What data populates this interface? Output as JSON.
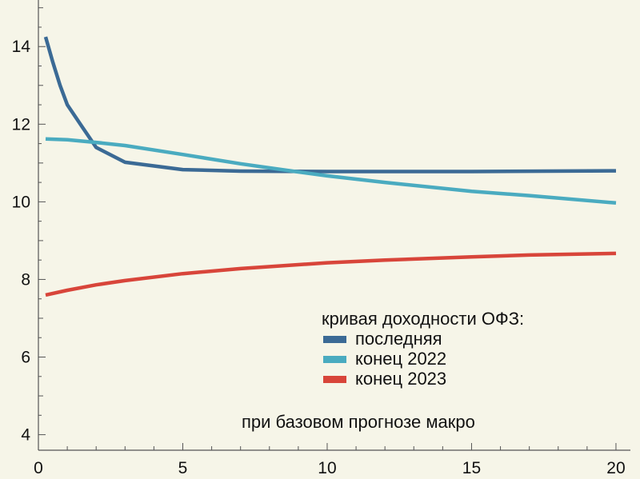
{
  "chart_data": {
    "type": "line",
    "title": "",
    "xlabel": "",
    "ylabel": "",
    "xlim": [
      0,
      20.5
    ],
    "ylim": [
      3.6,
      15.2
    ],
    "x_ticks": [
      0,
      5,
      10,
      15,
      20
    ],
    "y_ticks": [
      4,
      6,
      8,
      10,
      12,
      14
    ],
    "grid": false,
    "legend": {
      "title": "кривая доходности ОФЗ:",
      "placement": "bottom-right"
    },
    "annotation": "при базовом прогнозе макро",
    "series": [
      {
        "name": "последняя",
        "color": "#3b6a95",
        "x": [
          0.25,
          0.5,
          0.75,
          1,
          1.5,
          2,
          3,
          5,
          7,
          10,
          15,
          20
        ],
        "y": [
          14.25,
          13.6,
          13.0,
          12.5,
          11.95,
          11.4,
          11.02,
          10.83,
          10.79,
          10.78,
          10.78,
          10.8
        ]
      },
      {
        "name": "конец 2022",
        "color": "#4aabc0",
        "x": [
          0.25,
          1,
          2,
          3,
          5,
          7,
          9,
          10,
          12,
          15,
          17,
          20
        ],
        "y": [
          11.62,
          11.6,
          11.53,
          11.45,
          11.22,
          10.98,
          10.77,
          10.67,
          10.5,
          10.27,
          10.16,
          9.97
        ]
      },
      {
        "name": "конец 2023",
        "color": "#d8453a",
        "x": [
          0.25,
          1,
          2,
          3,
          5,
          7,
          10,
          12,
          15,
          17,
          20
        ],
        "y": [
          7.6,
          7.72,
          7.86,
          7.97,
          8.15,
          8.28,
          8.43,
          8.5,
          8.58,
          8.63,
          8.67
        ]
      }
    ]
  }
}
